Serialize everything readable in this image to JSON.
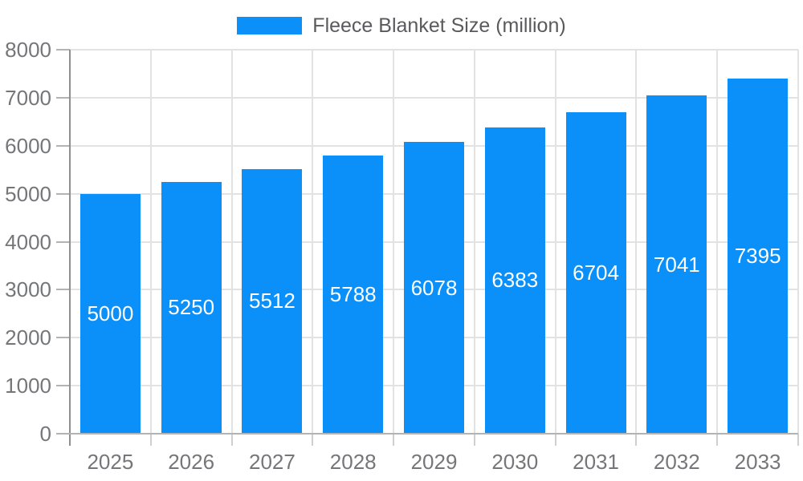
{
  "chart_data": {
    "type": "bar",
    "title": "Fleece Blanket Size (million)",
    "categories": [
      "2025",
      "2026",
      "2027",
      "2028",
      "2029",
      "2030",
      "2031",
      "2032",
      "2033"
    ],
    "values": [
      5000,
      5250,
      5512,
      5788,
      6078,
      6383,
      6704,
      7041,
      7395
    ],
    "series": [
      {
        "name": "Fleece Blanket Size (million)",
        "values": [
          5000,
          5250,
          5512,
          5788,
          6078,
          6383,
          6704,
          7041,
          7395
        ]
      }
    ],
    "xlabel": "",
    "ylabel": "",
    "ylim": [
      0,
      8000
    ],
    "ytick_step": 1000,
    "ytick_labels": [
      "0",
      "1000",
      "2000",
      "3000",
      "4000",
      "5000",
      "6000",
      "7000",
      "8000"
    ],
    "grid": true,
    "legend_position": "top",
    "value_label_position": "inside-center",
    "colors": {
      "bar": "#0a90f8",
      "value_label": "#ffffff",
      "tick_label": "#757679",
      "legend_text": "#595a5d",
      "grid": "#e2e2e2",
      "y_axis_line": "#8f8f8f",
      "x_axis_line": "#b3b3b3",
      "category_tick": "#cfcfcf",
      "background": "#ffffff"
    }
  }
}
